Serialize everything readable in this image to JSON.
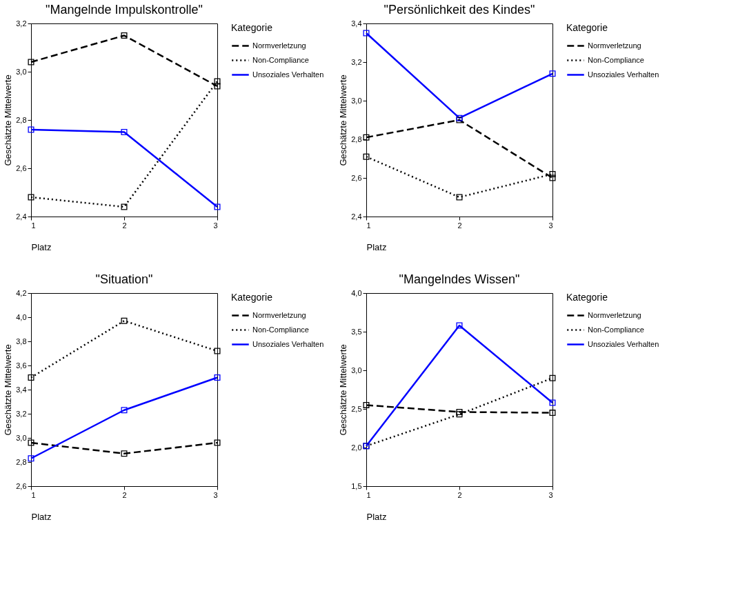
{
  "chart_data": [
    {
      "type": "line",
      "title": "\"Mangelnde Impulskontrolle\"",
      "xlabel": "Platz",
      "ylabel": "Geschätzte Mittelwerte",
      "legend_title": "Kategorie",
      "legend": "right",
      "marker": "square",
      "grid": false,
      "x": [
        1,
        2,
        3
      ],
      "xlim": [
        1,
        3
      ],
      "xticks": [
        1,
        2,
        3
      ],
      "ylim": [
        2.4,
        3.2
      ],
      "yticks": [
        {
          "value": 2.4,
          "label": "2,4"
        },
        {
          "value": 2.6,
          "label": "2,6"
        },
        {
          "value": 2.8,
          "label": "2,8"
        },
        {
          "value": 3.0,
          "label": "3,0"
        },
        {
          "value": 3.2,
          "label": "3,2"
        }
      ],
      "series": [
        {
          "name": "Normverletzung",
          "color": "#000000",
          "line_style": "dashed",
          "values": [
            3.04,
            3.15,
            2.94
          ]
        },
        {
          "name": "Non-Compliance",
          "color": "#000000",
          "line_style": "dotted",
          "values": [
            2.48,
            2.44,
            2.96
          ]
        },
        {
          "name": "Unsoziales Verhalten",
          "color": "#0000ff",
          "line_style": "solid",
          "values": [
            2.76,
            2.75,
            2.44
          ]
        }
      ]
    },
    {
      "type": "line",
      "title": "\"Persönlichkeit des Kindes\"",
      "xlabel": "Platz",
      "ylabel": "Geschätzte Mittelwerte",
      "legend_title": "Kategorie",
      "legend": "right",
      "marker": "square",
      "grid": false,
      "x": [
        1,
        2,
        3
      ],
      "xlim": [
        1,
        3
      ],
      "xticks": [
        1,
        2,
        3
      ],
      "ylim": [
        2.4,
        3.4
      ],
      "yticks": [
        {
          "value": 2.4,
          "label": "2,4"
        },
        {
          "value": 2.6,
          "label": "2,6"
        },
        {
          "value": 2.8,
          "label": "2,8"
        },
        {
          "value": 3.0,
          "label": "3,0"
        },
        {
          "value": 3.2,
          "label": "3,2"
        },
        {
          "value": 3.4,
          "label": "3,4"
        }
      ],
      "series": [
        {
          "name": "Normverletzung",
          "color": "#000000",
          "line_style": "dashed",
          "values": [
            2.81,
            2.9,
            2.6
          ]
        },
        {
          "name": "Non-Compliance",
          "color": "#000000",
          "line_style": "dotted",
          "values": [
            2.71,
            2.5,
            2.62
          ]
        },
        {
          "name": "Unsoziales Verhalten",
          "color": "#0000ff",
          "line_style": "solid",
          "values": [
            3.35,
            2.91,
            3.14
          ]
        }
      ]
    },
    {
      "type": "line",
      "title": "\"Situation\"",
      "xlabel": "Platz",
      "ylabel": "Geschätzte Mittelwerte",
      "legend_title": "Kategorie",
      "legend": "right",
      "marker": "square",
      "grid": false,
      "x": [
        1,
        2,
        3
      ],
      "xlim": [
        1,
        3
      ],
      "xticks": [
        1,
        2,
        3
      ],
      "ylim": [
        2.6,
        4.2
      ],
      "yticks": [
        {
          "value": 2.6,
          "label": "2,6"
        },
        {
          "value": 2.8,
          "label": "2,8"
        },
        {
          "value": 3.0,
          "label": "3,0"
        },
        {
          "value": 3.2,
          "label": "3,2"
        },
        {
          "value": 3.4,
          "label": "3,4"
        },
        {
          "value": 3.6,
          "label": "3,6"
        },
        {
          "value": 3.8,
          "label": "3,8"
        },
        {
          "value": 4.0,
          "label": "4,0"
        },
        {
          "value": 4.2,
          "label": "4,2"
        }
      ],
      "series": [
        {
          "name": "Normverletzung",
          "color": "#000000",
          "line_style": "dashed",
          "values": [
            2.96,
            2.87,
            2.96
          ]
        },
        {
          "name": "Non-Compliance",
          "color": "#000000",
          "line_style": "dotted",
          "values": [
            3.5,
            3.97,
            3.72
          ]
        },
        {
          "name": "Unsoziales Verhalten",
          "color": "#0000ff",
          "line_style": "solid",
          "values": [
            2.83,
            3.23,
            3.5
          ]
        }
      ]
    },
    {
      "type": "line",
      "title": "\"Mangelndes Wissen\"",
      "xlabel": "Platz",
      "ylabel": "Geschätzte Mittelwerte",
      "legend_title": "Kategorie",
      "legend": "right",
      "marker": "square",
      "grid": false,
      "x": [
        1,
        2,
        3
      ],
      "xlim": [
        1,
        3
      ],
      "xticks": [
        1,
        2,
        3
      ],
      "ylim": [
        1.5,
        4.0
      ],
      "yticks": [
        {
          "value": 1.5,
          "label": "1,5"
        },
        {
          "value": 2.0,
          "label": "2,0"
        },
        {
          "value": 2.5,
          "label": "2,5"
        },
        {
          "value": 3.0,
          "label": "3,0"
        },
        {
          "value": 3.5,
          "label": "3,5"
        },
        {
          "value": 4.0,
          "label": "4,0"
        }
      ],
      "series": [
        {
          "name": "Normverletzung",
          "color": "#000000",
          "line_style": "dashed",
          "values": [
            2.55,
            2.46,
            2.45
          ]
        },
        {
          "name": "Non-Compliance",
          "color": "#000000",
          "line_style": "dotted",
          "values": [
            2.02,
            2.43,
            2.9
          ]
        },
        {
          "name": "Unsoziales Verhalten",
          "color": "#0000ff",
          "line_style": "solid",
          "values": [
            2.02,
            3.58,
            2.58
          ]
        }
      ]
    }
  ]
}
